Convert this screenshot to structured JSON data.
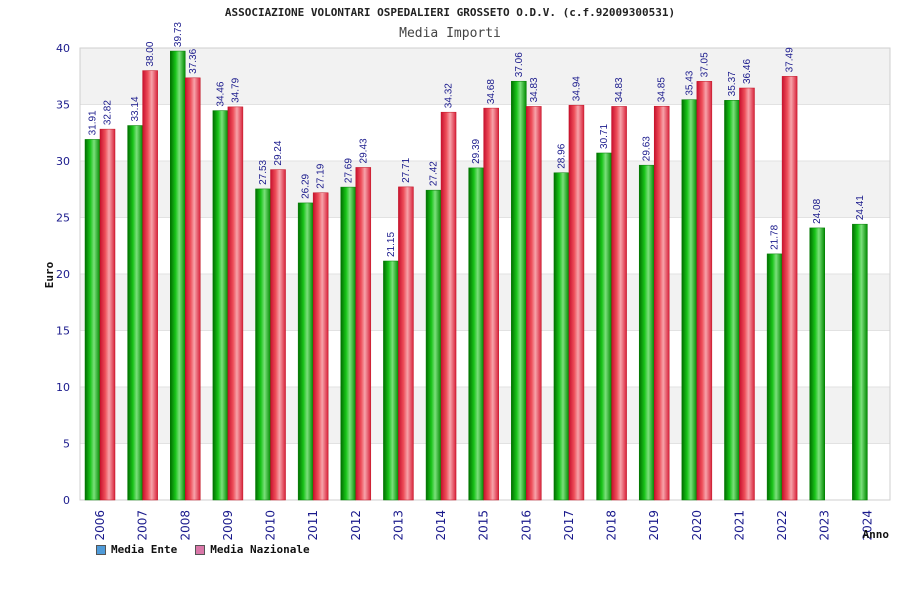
{
  "chart_data": {
    "type": "bar",
    "title": "ASSOCIAZIONE VOLONTARI OSPEDALIERI GROSSETO O.D.V. (c.f.92009300531)",
    "subtitle": "Media Importi",
    "xlabel": "Anno",
    "ylabel": "Euro",
    "ylim": [
      0,
      40
    ],
    "yticks": [
      0,
      5,
      10,
      15,
      20,
      25,
      30,
      35,
      40
    ],
    "grid": true,
    "legend_position": "bottom-left",
    "categories": [
      "2006",
      "2007",
      "2008",
      "2009",
      "2010",
      "2011",
      "2012",
      "2013",
      "2014",
      "2015",
      "2016",
      "2017",
      "2018",
      "2019",
      "2020",
      "2021",
      "2022",
      "2023",
      "2024"
    ],
    "series": [
      {
        "name": "Media Ente",
        "color": "#00b000",
        "legend_color": "#4f9bd9",
        "values": [
          31.91,
          33.14,
          39.73,
          34.46,
          27.53,
          26.29,
          27.69,
          21.15,
          27.42,
          29.39,
          37.06,
          28.96,
          30.71,
          29.63,
          35.43,
          35.37,
          21.78,
          24.08,
          24.41
        ],
        "labels": [
          "31.91",
          "33.14",
          "39.73",
          "34.46",
          "27.53",
          "26.29",
          "27.69",
          "21.15",
          "27.42",
          "29.39",
          "37.06",
          "28.96",
          "30.71",
          "29.63",
          "35.43",
          "35.37",
          "21.78",
          "24.08",
          "24.41"
        ]
      },
      {
        "name": "Media Nazionale",
        "color": "#e8323c",
        "legend_color": "#d977a8",
        "values": [
          32.82,
          38.0,
          37.36,
          34.79,
          29.24,
          27.19,
          29.43,
          27.71,
          34.32,
          34.68,
          34.83,
          34.94,
          34.83,
          34.85,
          37.05,
          36.46,
          37.49,
          null,
          null
        ],
        "labels": [
          "32.82",
          "38.00",
          "37.36",
          "34.79",
          "29.24",
          "27.19",
          "29.43",
          "27.71",
          "34.32",
          "34.68",
          "34.83",
          "34.94",
          "34.83",
          "34.85",
          "37.05",
          "36.46",
          "37.49",
          null,
          null
        ]
      }
    ]
  }
}
